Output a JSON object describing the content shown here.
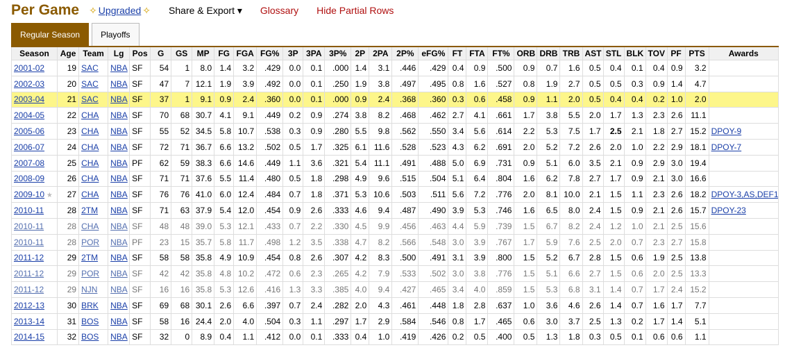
{
  "header": {
    "title": "Per Game",
    "upgraded": "Upgraded",
    "share": "Share & Export",
    "glossary": "Glossary",
    "hide_partial": "Hide Partial Rows"
  },
  "tabs": [
    "Regular Season",
    "Playoffs"
  ],
  "table": {
    "columns": [
      "Season",
      "Age",
      "Team",
      "Lg",
      "Pos",
      "G",
      "GS",
      "MP",
      "FG",
      "FGA",
      "FG%",
      "3P",
      "3PA",
      "3P%",
      "2P",
      "2PA",
      "2P%",
      "eFG%",
      "FT",
      "FTA",
      "FT%",
      "ORB",
      "DRB",
      "TRB",
      "AST",
      "STL",
      "BLK",
      "TOV",
      "PF",
      "PTS",
      "Awards"
    ],
    "rows": [
      [
        "2001-02",
        "19",
        "SAC",
        "NBA",
        "SF",
        "54",
        "1",
        "8.0",
        "1.4",
        "3.2",
        ".429",
        "0.0",
        "0.1",
        ".000",
        "1.4",
        "3.1",
        ".446",
        ".429",
        "0.4",
        "0.9",
        ".500",
        "0.9",
        "0.7",
        "1.6",
        "0.5",
        "0.4",
        "0.1",
        "0.4",
        "0.9",
        "3.2",
        ""
      ],
      [
        "2002-03",
        "20",
        "SAC",
        "NBA",
        "SF",
        "47",
        "7",
        "12.1",
        "1.9",
        "3.9",
        ".492",
        "0.0",
        "0.1",
        ".250",
        "1.9",
        "3.8",
        ".497",
        ".495",
        "0.8",
        "1.6",
        ".527",
        "0.8",
        "1.9",
        "2.7",
        "0.5",
        "0.5",
        "0.3",
        "0.9",
        "1.4",
        "4.7",
        ""
      ],
      [
        "2003-04",
        "21",
        "SAC",
        "NBA",
        "SF",
        "37",
        "1",
        "9.1",
        "0.9",
        "2.4",
        ".360",
        "0.0",
        "0.1",
        ".000",
        "0.9",
        "2.4",
        ".368",
        ".360",
        "0.3",
        "0.6",
        ".458",
        "0.9",
        "1.1",
        "2.0",
        "0.5",
        "0.4",
        "0.4",
        "0.2",
        "1.0",
        "2.0",
        ""
      ],
      [
        "2004-05",
        "22",
        "CHA",
        "NBA",
        "SF",
        "70",
        "68",
        "30.7",
        "4.1",
        "9.1",
        ".449",
        "0.2",
        "0.9",
        ".274",
        "3.8",
        "8.2",
        ".468",
        ".462",
        "2.7",
        "4.1",
        ".661",
        "1.7",
        "3.8",
        "5.5",
        "2.0",
        "1.7",
        "1.3",
        "2.3",
        "2.6",
        "11.1",
        ""
      ],
      [
        "2005-06",
        "23",
        "CHA",
        "NBA",
        "SF",
        "55",
        "52",
        "34.5",
        "5.8",
        "10.7",
        ".538",
        "0.3",
        "0.9",
        ".280",
        "5.5",
        "9.8",
        ".562",
        ".550",
        "3.4",
        "5.6",
        ".614",
        "2.2",
        "5.3",
        "7.5",
        "1.7",
        "2.5",
        "2.1",
        "1.8",
        "2.7",
        "15.2",
        "DPOY-9"
      ],
      [
        "2006-07",
        "24",
        "CHA",
        "NBA",
        "SF",
        "72",
        "71",
        "36.7",
        "6.6",
        "13.2",
        ".502",
        "0.5",
        "1.7",
        ".325",
        "6.1",
        "11.6",
        ".528",
        ".523",
        "4.3",
        "6.2",
        ".691",
        "2.0",
        "5.2",
        "7.2",
        "2.6",
        "2.0",
        "1.0",
        "2.2",
        "2.9",
        "18.1",
        "DPOY-7"
      ],
      [
        "2007-08",
        "25",
        "CHA",
        "NBA",
        "PF",
        "62",
        "59",
        "38.3",
        "6.6",
        "14.6",
        ".449",
        "1.1",
        "3.6",
        ".321",
        "5.4",
        "11.1",
        ".491",
        ".488",
        "5.0",
        "6.9",
        ".731",
        "0.9",
        "5.1",
        "6.0",
        "3.5",
        "2.1",
        "0.9",
        "2.9",
        "3.0",
        "19.4",
        ""
      ],
      [
        "2008-09",
        "26",
        "CHA",
        "NBA",
        "SF",
        "71",
        "71",
        "37.6",
        "5.5",
        "11.4",
        ".480",
        "0.5",
        "1.8",
        ".298",
        "4.9",
        "9.6",
        ".515",
        ".504",
        "5.1",
        "6.4",
        ".804",
        "1.6",
        "6.2",
        "7.8",
        "2.7",
        "1.7",
        "0.9",
        "2.1",
        "3.0",
        "16.6",
        ""
      ],
      [
        "2009-10",
        "27",
        "CHA",
        "NBA",
        "SF",
        "76",
        "76",
        "41.0",
        "6.0",
        "12.4",
        ".484",
        "0.7",
        "1.8",
        ".371",
        "5.3",
        "10.6",
        ".503",
        ".511",
        "5.6",
        "7.2",
        ".776",
        "2.0",
        "8.1",
        "10.0",
        "2.1",
        "1.5",
        "1.1",
        "2.3",
        "2.6",
        "18.2",
        "DPOY-3,AS,DEF1"
      ],
      [
        "2010-11",
        "28",
        "2TM",
        "NBA",
        "SF",
        "71",
        "63",
        "37.9",
        "5.4",
        "12.0",
        ".454",
        "0.9",
        "2.6",
        ".333",
        "4.6",
        "9.4",
        ".487",
        ".490",
        "3.9",
        "5.3",
        ".746",
        "1.6",
        "6.5",
        "8.0",
        "2.4",
        "1.5",
        "0.9",
        "2.1",
        "2.6",
        "15.7",
        "DPOY-23"
      ],
      [
        "2010-11",
        "28",
        "CHA",
        "NBA",
        "SF",
        "48",
        "48",
        "39.0",
        "5.3",
        "12.1",
        ".433",
        "0.7",
        "2.2",
        ".330",
        "4.5",
        "9.9",
        ".456",
        ".463",
        "4.4",
        "5.9",
        ".739",
        "1.5",
        "6.7",
        "8.2",
        "2.4",
        "1.2",
        "1.0",
        "2.1",
        "2.5",
        "15.6",
        ""
      ],
      [
        "2010-11",
        "28",
        "POR",
        "NBA",
        "PF",
        "23",
        "15",
        "35.7",
        "5.8",
        "11.7",
        ".498",
        "1.2",
        "3.5",
        ".338",
        "4.7",
        "8.2",
        ".566",
        ".548",
        "3.0",
        "3.9",
        ".767",
        "1.7",
        "5.9",
        "7.6",
        "2.5",
        "2.0",
        "0.7",
        "2.3",
        "2.7",
        "15.8",
        ""
      ],
      [
        "2011-12",
        "29",
        "2TM",
        "NBA",
        "SF",
        "58",
        "58",
        "35.8",
        "4.9",
        "10.9",
        ".454",
        "0.8",
        "2.6",
        ".307",
        "4.2",
        "8.3",
        ".500",
        ".491",
        "3.1",
        "3.9",
        ".800",
        "1.5",
        "5.2",
        "6.7",
        "2.8",
        "1.5",
        "0.6",
        "1.9",
        "2.5",
        "13.8",
        ""
      ],
      [
        "2011-12",
        "29",
        "POR",
        "NBA",
        "SF",
        "42",
        "42",
        "35.8",
        "4.8",
        "10.2",
        ".472",
        "0.6",
        "2.3",
        ".265",
        "4.2",
        "7.9",
        ".533",
        ".502",
        "3.0",
        "3.8",
        ".776",
        "1.5",
        "5.1",
        "6.6",
        "2.7",
        "1.5",
        "0.6",
        "2.0",
        "2.5",
        "13.3",
        ""
      ],
      [
        "2011-12",
        "29",
        "NJN",
        "NBA",
        "SF",
        "16",
        "16",
        "35.8",
        "5.3",
        "12.6",
        ".416",
        "1.3",
        "3.3",
        ".385",
        "4.0",
        "9.4",
        ".427",
        ".465",
        "3.4",
        "4.0",
        ".859",
        "1.5",
        "5.3",
        "6.8",
        "3.1",
        "1.4",
        "0.7",
        "1.7",
        "2.4",
        "15.2",
        ""
      ],
      [
        "2012-13",
        "30",
        "BRK",
        "NBA",
        "SF",
        "69",
        "68",
        "30.1",
        "2.6",
        "6.6",
        ".397",
        "0.7",
        "2.4",
        ".282",
        "2.0",
        "4.3",
        ".461",
        ".448",
        "1.8",
        "2.8",
        ".637",
        "1.0",
        "3.6",
        "4.6",
        "2.6",
        "1.4",
        "0.7",
        "1.6",
        "1.7",
        "7.7",
        ""
      ],
      [
        "2013-14",
        "31",
        "BOS",
        "NBA",
        "SF",
        "58",
        "16",
        "24.4",
        "2.0",
        "4.0",
        ".504",
        "0.3",
        "1.1",
        ".297",
        "1.7",
        "2.9",
        ".584",
        ".546",
        "0.8",
        "1.7",
        ".465",
        "0.6",
        "3.0",
        "3.7",
        "2.5",
        "1.3",
        "0.2",
        "1.7",
        "1.4",
        "5.1",
        ""
      ],
      [
        "2014-15",
        "32",
        "BOS",
        "NBA",
        "SF",
        "32",
        "0",
        "8.9",
        "0.4",
        "1.1",
        ".412",
        "0.0",
        "0.1",
        ".333",
        "0.4",
        "1.0",
        ".419",
        ".426",
        "0.2",
        "0.5",
        ".400",
        "0.5",
        "1.3",
        "1.8",
        "0.3",
        "0.5",
        "0.1",
        "0.6",
        "0.6",
        "1.1",
        ""
      ]
    ]
  }
}
